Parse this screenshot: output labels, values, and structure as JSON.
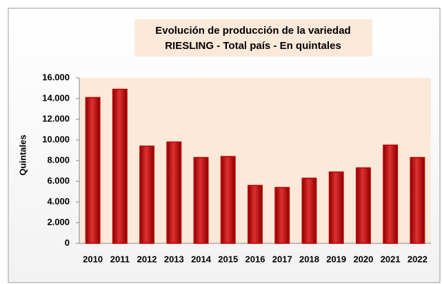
{
  "chart_data": {
    "type": "bar",
    "title": [
      "Evolución de producción de la variedad",
      "RIESLING - Total país - En quintales"
    ],
    "y_label": "Quintales",
    "categories": [
      "2010",
      "2011",
      "2012",
      "2013",
      "2014",
      "2015",
      "2016",
      "2017",
      "2018",
      "2019",
      "2020",
      "2021",
      "2022"
    ],
    "values": [
      14100,
      14900,
      9400,
      9800,
      8300,
      8400,
      5600,
      5400,
      6300,
      6900,
      7300,
      9500,
      8300
    ],
    "color": "#c00000",
    "ylim": [
      0,
      16000
    ],
    "yticks": [
      0,
      {
        "value": 2000,
        "label": "2.000"
      },
      {
        "value": 4000,
        "label": "4.000"
      },
      {
        "value": 6000,
        "label": "6.000"
      },
      {
        "value": 8000,
        "label": "8.000"
      },
      {
        "value": 10000,
        "label": "10.000"
      },
      {
        "value": 12000,
        "label": "12.000"
      },
      {
        "value": 14000,
        "label": "14.000"
      },
      {
        "value": 16000,
        "label": "16.000"
      }
    ],
    "grid": false
  }
}
